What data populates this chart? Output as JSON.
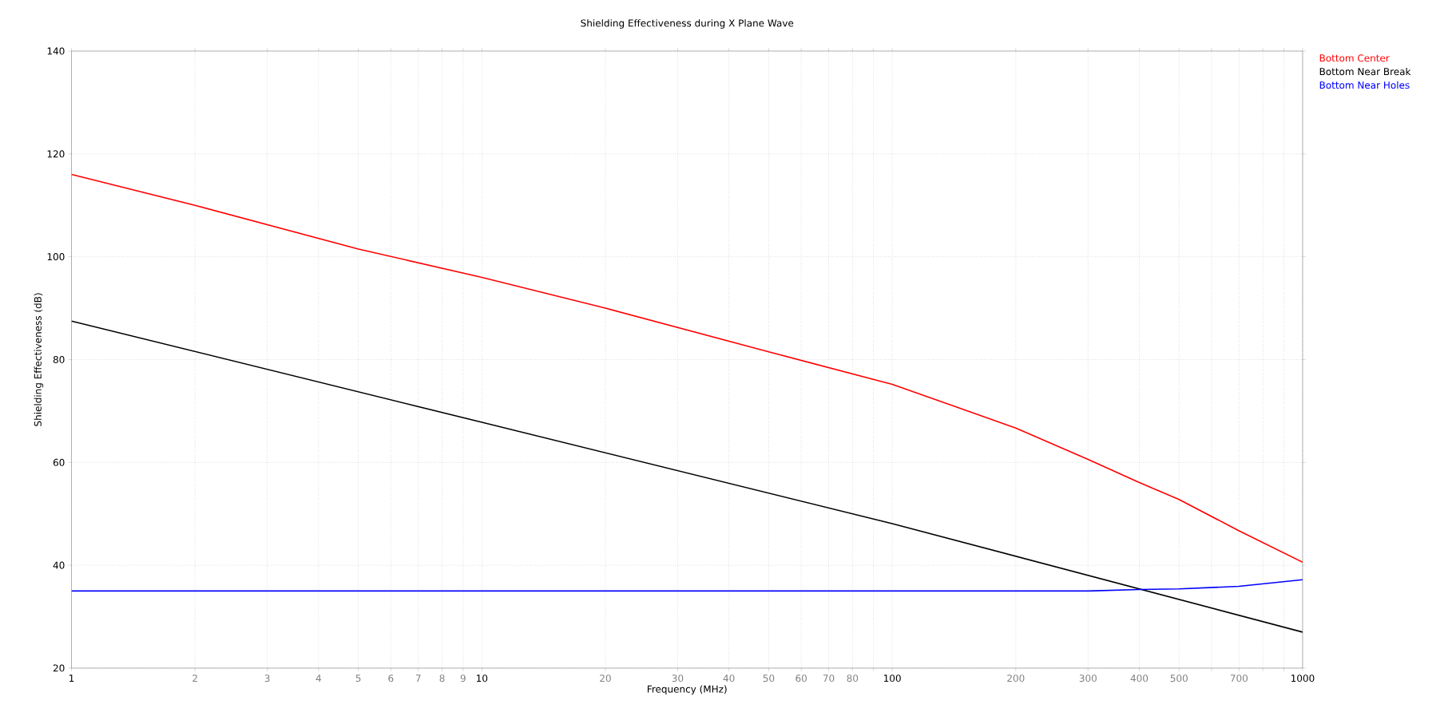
{
  "chart_data": {
    "type": "line",
    "title": "Shielding Effectiveness during X Plane Wave",
    "xlabel": "Frequency (MHz)",
    "ylabel": "Shielding Effectiveness (dB)",
    "log": "x",
    "xlim": [
      1,
      1000
    ],
    "ylim": [
      20,
      140
    ],
    "xticks": [
      1,
      2,
      3,
      4,
      5,
      6,
      7,
      8,
      9,
      10,
      20,
      30,
      40,
      50,
      60,
      70,
      80,
      {
        "value": 90,
        "label": null
      },
      100,
      200,
      300,
      400,
      500,
      {
        "value": 600,
        "label": null
      },
      700,
      {
        "value": 800,
        "label": null
      },
      {
        "value": 900,
        "label": null
      },
      1000
    ],
    "yticks": [
      20,
      40,
      60,
      80,
      100,
      120,
      140
    ],
    "grid": true,
    "legend": "top right",
    "line_style": "solid",
    "marker": "none",
    "series": [
      {
        "name": "Bottom Center",
        "color": "#ff0000",
        "x": [
          1,
          2,
          5,
          10,
          20,
          50,
          100,
          200,
          300,
          400,
          500,
          700,
          1000
        ],
        "values": [
          116,
          110,
          101.5,
          96,
          90,
          81.5,
          75.2,
          66.7,
          60.6,
          56.1,
          52.8,
          46.7,
          40.6
        ]
      },
      {
        "name": "Bottom Near Break",
        "color": "#000000",
        "x": [
          1,
          10,
          100,
          1000
        ],
        "values": [
          87.5,
          67.8,
          48.1,
          27.0
        ]
      },
      {
        "name": "Bottom Near Holes",
        "color": "#0000ff",
        "x": [
          1,
          10,
          100,
          300,
          400,
          500,
          700,
          1000
        ],
        "values": [
          35,
          35,
          35,
          35,
          35.3,
          35.4,
          35.9,
          37.2
        ]
      }
    ]
  }
}
